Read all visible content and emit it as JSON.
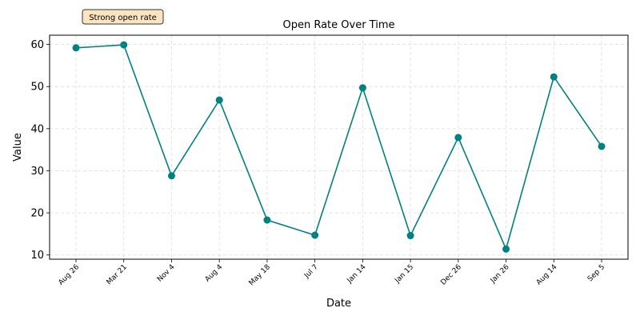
{
  "chart_data": {
    "type": "line",
    "title": "Open Rate Over Time",
    "xlabel": "Date",
    "ylabel": "Value",
    "categories": [
      "Aug 26",
      "Mar 21",
      "Nov 4",
      "Aug 4",
      "May 18",
      "Jul 7",
      "Jan 14",
      "Jan 15",
      "Dec 26",
      "Jan 26",
      "Aug 14",
      "Sep 5"
    ],
    "series": [
      {
        "values": [
          59.2,
          59.9,
          28.8,
          46.8,
          18.3,
          14.7,
          49.7,
          14.6,
          37.9,
          11.4,
          52.3,
          35.8
        ]
      }
    ],
    "ylim": [
      9.0,
      62.2
    ],
    "yticks": [
      10,
      20,
      30,
      40,
      50,
      60
    ],
    "grid": true,
    "annotation": "Strong open rate",
    "colors": {
      "line": "#008080",
      "annotation_bg": "#fde4c0",
      "annotation_border": "#333333",
      "grid": "#dddddd"
    }
  }
}
